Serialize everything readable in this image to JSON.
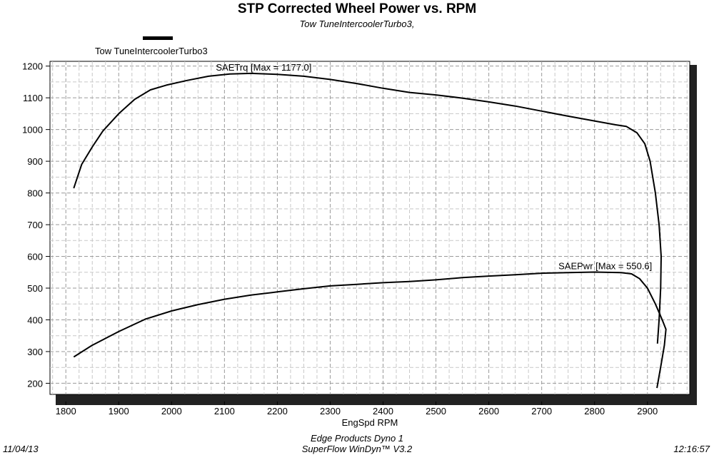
{
  "chart_data": {
    "type": "line",
    "title": "STP Corrected Wheel Power vs. RPM",
    "subtitle": "Tow TuneIntercoolerTurbo3,",
    "legend": [
      "Tow TuneIntercoolerTurbo3"
    ],
    "xlabel": "EngSpd RPM",
    "ylabel": "",
    "xlim": [
      1770,
      2980
    ],
    "ylim": [
      165,
      1215
    ],
    "x_ticks": [
      1800,
      1900,
      2000,
      2100,
      2200,
      2300,
      2400,
      2500,
      2600,
      2700,
      2800,
      2900
    ],
    "y_ticks": [
      200,
      300,
      400,
      500,
      600,
      700,
      800,
      900,
      1000,
      1100,
      1200
    ],
    "grid": true,
    "series": [
      {
        "name": "SAETrq",
        "annotation": "SAETrq [Max = 1177.0]",
        "points": [
          [
            1815,
            815
          ],
          [
            1830,
            890
          ],
          [
            1850,
            945
          ],
          [
            1870,
            995
          ],
          [
            1900,
            1050
          ],
          [
            1930,
            1095
          ],
          [
            1960,
            1125
          ],
          [
            1990,
            1140
          ],
          [
            2030,
            1155
          ],
          [
            2070,
            1168
          ],
          [
            2110,
            1175
          ],
          [
            2150,
            1177
          ],
          [
            2200,
            1174
          ],
          [
            2250,
            1168
          ],
          [
            2300,
            1158
          ],
          [
            2350,
            1145
          ],
          [
            2400,
            1130
          ],
          [
            2450,
            1117
          ],
          [
            2500,
            1109
          ],
          [
            2550,
            1099
          ],
          [
            2600,
            1087
          ],
          [
            2650,
            1074
          ],
          [
            2700,
            1058
          ],
          [
            2750,
            1042
          ],
          [
            2800,
            1027
          ],
          [
            2840,
            1015
          ],
          [
            2860,
            1010
          ],
          [
            2880,
            990
          ],
          [
            2895,
            955
          ],
          [
            2905,
            900
          ],
          [
            2915,
            800
          ],
          [
            2922,
            700
          ],
          [
            2926,
            600
          ],
          [
            2925,
            500
          ],
          [
            2922,
            400
          ],
          [
            2919,
            325
          ]
        ]
      },
      {
        "name": "SAEPwr",
        "annotation": "SAEPwr [Max = 550.6]",
        "points": [
          [
            1815,
            283
          ],
          [
            1850,
            320
          ],
          [
            1900,
            363
          ],
          [
            1950,
            402
          ],
          [
            2000,
            428
          ],
          [
            2050,
            448
          ],
          [
            2100,
            465
          ],
          [
            2150,
            478
          ],
          [
            2200,
            488
          ],
          [
            2250,
            498
          ],
          [
            2300,
            507
          ],
          [
            2350,
            512
          ],
          [
            2400,
            517
          ],
          [
            2450,
            521
          ],
          [
            2500,
            526
          ],
          [
            2550,
            533
          ],
          [
            2600,
            538
          ],
          [
            2650,
            542
          ],
          [
            2700,
            547
          ],
          [
            2750,
            549
          ],
          [
            2800,
            550.6
          ],
          [
            2850,
            549
          ],
          [
            2870,
            545
          ],
          [
            2885,
            530
          ],
          [
            2900,
            500
          ],
          [
            2915,
            450
          ],
          [
            2928,
            400
          ],
          [
            2935,
            370
          ],
          [
            2932,
            320
          ],
          [
            2926,
            260
          ],
          [
            2918,
            185
          ]
        ]
      }
    ]
  },
  "footer": {
    "date": "11/04/13",
    "center_line1": "Edge Products Dyno 1",
    "center_line2": "SuperFlow WinDyn™ V3.2",
    "time": "12:16:57"
  }
}
